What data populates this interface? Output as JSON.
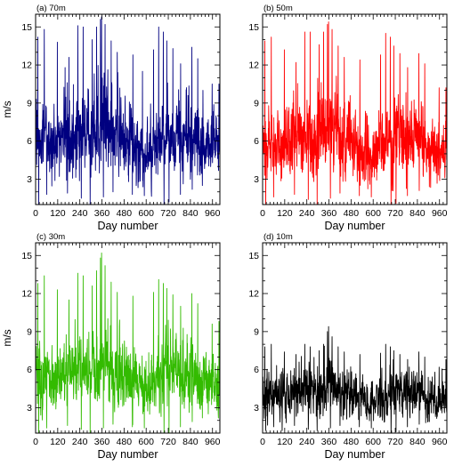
{
  "figure": {
    "title": "",
    "panels_count": 4
  },
  "chart_data": [
    {
      "type": "line",
      "panel_label": "(a) 70m",
      "xlabel": "Day number",
      "ylabel": "m/s",
      "xlim": [
        0,
        1000
      ],
      "ylim": [
        1,
        16
      ],
      "xticks": [
        0,
        120,
        240,
        360,
        480,
        600,
        720,
        840,
        960
      ],
      "yticks": [
        3,
        6,
        9,
        12,
        15
      ],
      "color": "#000080",
      "mean": 6.1,
      "series": {
        "x_start": 1,
        "x_step": 1,
        "anchors": [
          [
            0,
            6.0
          ],
          [
            20,
            6.0
          ],
          [
            60,
            5.8
          ],
          [
            120,
            5.9
          ],
          [
            180,
            6.2
          ],
          [
            240,
            6.4
          ],
          [
            300,
            6.6
          ],
          [
            340,
            6.9
          ],
          [
            360,
            7.2
          ],
          [
            400,
            6.9
          ],
          [
            440,
            6.3
          ],
          [
            480,
            6.0
          ],
          [
            540,
            5.4
          ],
          [
            600,
            5.2
          ],
          [
            660,
            5.5
          ],
          [
            700,
            6.1
          ],
          [
            740,
            6.4
          ],
          [
            780,
            6.3
          ],
          [
            840,
            6.0
          ],
          [
            900,
            5.6
          ],
          [
            960,
            5.4
          ],
          [
            1000,
            5.6
          ]
        ],
        "peaks": [
          [
            12,
            14.2
          ],
          [
            47,
            14.8
          ],
          [
            118,
            13.8
          ],
          [
            160,
            11.8
          ],
          [
            181,
            12.6
          ],
          [
            229,
            15.1
          ],
          [
            258,
            15.0
          ],
          [
            307,
            14.0
          ],
          [
            331,
            15.0
          ],
          [
            352,
            15.6
          ],
          [
            358,
            15.8
          ],
          [
            377,
            15.2
          ],
          [
            410,
            13.9
          ],
          [
            443,
            13.0
          ],
          [
            528,
            12.8
          ],
          [
            580,
            11.5
          ],
          [
            640,
            13.2
          ],
          [
            668,
            15.0
          ],
          [
            693,
            14.6
          ],
          [
            712,
            13.9
          ],
          [
            745,
            13.3
          ],
          [
            787,
            12.1
          ],
          [
            848,
            13.4
          ],
          [
            880,
            12.5
          ],
          [
            908,
            10.0
          ],
          [
            958,
            10.5
          ],
          [
            995,
            10.5
          ]
        ],
        "troughs": [
          [
            17,
            1.0
          ],
          [
            60,
            1.8
          ],
          [
            173,
            1.9
          ],
          [
            248,
            1.5
          ],
          [
            296,
            1.0
          ],
          [
            368,
            1.6
          ],
          [
            420,
            2.0
          ],
          [
            525,
            1.8
          ],
          [
            590,
            1.7
          ],
          [
            697,
            1.0
          ],
          [
            724,
            1.2
          ],
          [
            786,
            1.8
          ],
          [
            850,
            2.2
          ],
          [
            905,
            2.5
          ]
        ]
      }
    },
    {
      "type": "line",
      "panel_label": "(b) 50m",
      "xlabel": "Day number",
      "ylabel": "",
      "xlim": [
        0,
        1000
      ],
      "ylim": [
        1,
        16
      ],
      "xticks": [
        0,
        120,
        240,
        360,
        480,
        600,
        720,
        840,
        960
      ],
      "yticks": [
        3,
        6,
        9,
        12,
        15
      ],
      "color": "#ff0000",
      "mean": 5.9,
      "series": {
        "x_start": 1,
        "x_step": 1,
        "anchors": [
          [
            0,
            5.8
          ],
          [
            20,
            5.8
          ],
          [
            60,
            5.6
          ],
          [
            120,
            5.7
          ],
          [
            180,
            6.0
          ],
          [
            240,
            6.2
          ],
          [
            300,
            6.4
          ],
          [
            340,
            6.7
          ],
          [
            360,
            7.0
          ],
          [
            400,
            6.7
          ],
          [
            440,
            6.1
          ],
          [
            480,
            5.8
          ],
          [
            540,
            5.2
          ],
          [
            600,
            5.0
          ],
          [
            660,
            5.3
          ],
          [
            700,
            5.9
          ],
          [
            740,
            6.2
          ],
          [
            780,
            6.1
          ],
          [
            840,
            5.8
          ],
          [
            900,
            5.4
          ],
          [
            960,
            5.2
          ],
          [
            1000,
            5.4
          ]
        ],
        "peaks": [
          [
            12,
            13.9
          ],
          [
            47,
            14.2
          ],
          [
            118,
            13.2
          ],
          [
            181,
            12.2
          ],
          [
            229,
            14.6
          ],
          [
            258,
            14.6
          ],
          [
            307,
            13.6
          ],
          [
            331,
            14.6
          ],
          [
            352,
            15.2
          ],
          [
            358,
            15.4
          ],
          [
            377,
            14.8
          ],
          [
            410,
            13.5
          ],
          [
            443,
            12.6
          ],
          [
            528,
            12.4
          ],
          [
            640,
            12.8
          ],
          [
            668,
            14.5
          ],
          [
            693,
            14.2
          ],
          [
            712,
            13.5
          ],
          [
            745,
            12.9
          ],
          [
            787,
            11.8
          ],
          [
            848,
            12.9
          ],
          [
            880,
            12.1
          ],
          [
            958,
            10.2
          ],
          [
            995,
            10.2
          ]
        ],
        "troughs": [
          [
            17,
            1.0
          ],
          [
            60,
            1.6
          ],
          [
            173,
            1.8
          ],
          [
            248,
            1.4
          ],
          [
            296,
            1.0
          ],
          [
            368,
            1.5
          ],
          [
            420,
            1.9
          ],
          [
            525,
            1.7
          ],
          [
            590,
            1.6
          ],
          [
            697,
            1.0
          ],
          [
            724,
            1.1
          ],
          [
            786,
            1.7
          ],
          [
            850,
            2.1
          ],
          [
            905,
            2.4
          ]
        ]
      }
    },
    {
      "type": "line",
      "panel_label": "(c) 30m",
      "xlabel": "Day number",
      "ylabel": "m/s",
      "xlim": [
        0,
        1000
      ],
      "ylim": [
        1,
        16
      ],
      "xticks": [
        0,
        120,
        240,
        360,
        480,
        600,
        720,
        840,
        960
      ],
      "yticks": [
        3,
        6,
        9,
        12,
        15
      ],
      "color": "#33bb00",
      "mean": 5.5,
      "series": {
        "x_start": 1,
        "x_step": 1,
        "anchors": [
          [
            0,
            5.4
          ],
          [
            20,
            5.4
          ],
          [
            60,
            5.2
          ],
          [
            120,
            5.3
          ],
          [
            180,
            5.6
          ],
          [
            240,
            5.8
          ],
          [
            300,
            6.0
          ],
          [
            340,
            6.3
          ],
          [
            360,
            6.6
          ],
          [
            400,
            6.3
          ],
          [
            440,
            5.7
          ],
          [
            480,
            5.4
          ],
          [
            540,
            4.9
          ],
          [
            600,
            4.7
          ],
          [
            660,
            5.0
          ],
          [
            700,
            5.5
          ],
          [
            740,
            5.8
          ],
          [
            780,
            5.7
          ],
          [
            840,
            5.4
          ],
          [
            900,
            5.0
          ],
          [
            960,
            4.9
          ],
          [
            1000,
            5.1
          ]
        ],
        "peaks": [
          [
            12,
            12.8
          ],
          [
            47,
            13.4
          ],
          [
            118,
            12.3
          ],
          [
            181,
            11.5
          ],
          [
            229,
            13.6
          ],
          [
            258,
            13.4
          ],
          [
            307,
            12.6
          ],
          [
            331,
            13.8
          ],
          [
            352,
            14.8
          ],
          [
            358,
            15.2
          ],
          [
            377,
            14.2
          ],
          [
            410,
            12.9
          ],
          [
            443,
            12.1
          ],
          [
            528,
            11.8
          ],
          [
            640,
            12.1
          ],
          [
            668,
            13.1
          ],
          [
            693,
            12.8
          ],
          [
            712,
            12.4
          ],
          [
            745,
            11.9
          ],
          [
            787,
            11.0
          ],
          [
            848,
            12.0
          ],
          [
            880,
            11.2
          ],
          [
            958,
            9.6
          ],
          [
            995,
            9.8
          ]
        ],
        "troughs": [
          [
            17,
            1.0
          ],
          [
            60,
            1.4
          ],
          [
            173,
            1.6
          ],
          [
            248,
            1.3
          ],
          [
            296,
            1.0
          ],
          [
            368,
            1.4
          ],
          [
            420,
            1.7
          ],
          [
            525,
            1.5
          ],
          [
            590,
            1.4
          ],
          [
            697,
            1.0
          ],
          [
            724,
            1.0
          ],
          [
            786,
            1.5
          ],
          [
            850,
            1.9
          ],
          [
            905,
            2.2
          ]
        ]
      }
    },
    {
      "type": "line",
      "panel_label": "(d) 10m",
      "xlabel": "Day number",
      "ylabel": "",
      "xlim": [
        0,
        1000
      ],
      "ylim": [
        1,
        16
      ],
      "xticks": [
        0,
        120,
        240,
        360,
        480,
        600,
        720,
        840,
        960
      ],
      "yticks": [
        3,
        6,
        9,
        12,
        15
      ],
      "color": "#000000",
      "mean": 4.0,
      "series": {
        "x_start": 1,
        "x_step": 1,
        "anchors": [
          [
            0,
            4.1
          ],
          [
            20,
            4.1
          ],
          [
            60,
            3.9
          ],
          [
            120,
            4.0
          ],
          [
            180,
            4.2
          ],
          [
            240,
            4.3
          ],
          [
            300,
            4.4
          ],
          [
            340,
            4.6
          ],
          [
            360,
            4.8
          ],
          [
            400,
            4.6
          ],
          [
            440,
            4.2
          ],
          [
            480,
            4.0
          ],
          [
            540,
            3.6
          ],
          [
            600,
            3.5
          ],
          [
            660,
            3.7
          ],
          [
            700,
            4.0
          ],
          [
            740,
            4.2
          ],
          [
            780,
            4.1
          ],
          [
            840,
            3.9
          ],
          [
            900,
            3.6
          ],
          [
            960,
            3.5
          ],
          [
            1000,
            3.7
          ]
        ],
        "peaks": [
          [
            12,
            7.8
          ],
          [
            47,
            8.0
          ],
          [
            118,
            7.4
          ],
          [
            181,
            7.2
          ],
          [
            229,
            8.0
          ],
          [
            258,
            7.8
          ],
          [
            307,
            7.5
          ],
          [
            331,
            8.0
          ],
          [
            352,
            9.0
          ],
          [
            358,
            9.4
          ],
          [
            377,
            8.6
          ],
          [
            410,
            7.8
          ],
          [
            443,
            7.4
          ],
          [
            528,
            7.2
          ],
          [
            640,
            7.3
          ],
          [
            668,
            8.0
          ],
          [
            693,
            7.8
          ],
          [
            712,
            7.5
          ],
          [
            745,
            7.2
          ],
          [
            787,
            6.8
          ],
          [
            848,
            7.4
          ],
          [
            880,
            7.0
          ],
          [
            958,
            6.2
          ],
          [
            995,
            6.8
          ]
        ],
        "troughs": [
          [
            17,
            1.2
          ],
          [
            60,
            1.5
          ],
          [
            173,
            1.6
          ],
          [
            248,
            1.3
          ],
          [
            296,
            1.2
          ],
          [
            368,
            1.4
          ],
          [
            420,
            1.6
          ],
          [
            525,
            1.5
          ],
          [
            590,
            1.4
          ],
          [
            697,
            1.0
          ],
          [
            724,
            1.1
          ],
          [
            786,
            1.5
          ],
          [
            850,
            1.7
          ],
          [
            905,
            1.9
          ]
        ]
      }
    }
  ]
}
